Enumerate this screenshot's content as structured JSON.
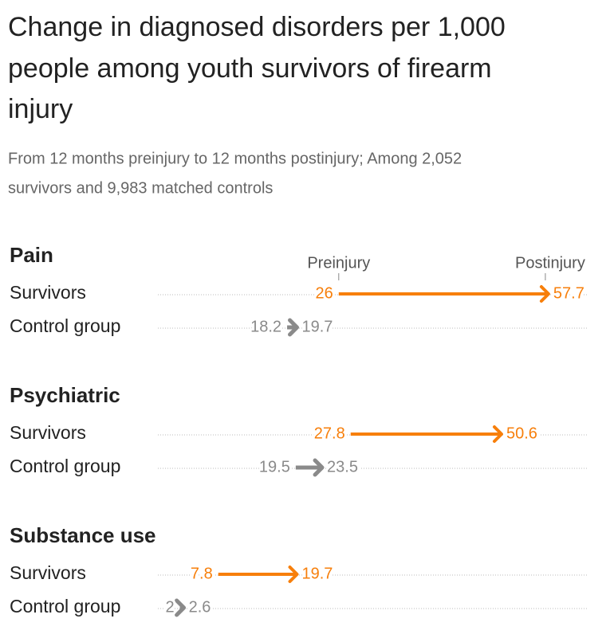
{
  "chart_data": {
    "type": "arrow",
    "title": [
      "Change in diagnosed disorders per 1,000",
      "people among youth survivors of firearm",
      "injury"
    ],
    "subtitle": [
      "From 12 months preinjury to 12 months postinjury; Among 2,052",
      "survivors and 9,983 matched controls"
    ],
    "start_label": "Preinjury",
    "end_label": "Postinjury",
    "xlim": [
      0,
      60
    ],
    "series": [
      {
        "name": "Survivors",
        "color": "#f77f0b"
      },
      {
        "name": "Control group",
        "color": "#8a8a8a"
      }
    ],
    "groups": [
      {
        "name": "Pain",
        "start": [
          26,
          18.2
        ],
        "end": [
          57.7,
          19.7
        ]
      },
      {
        "name": "Psychiatric",
        "start": [
          27.8,
          19.5
        ],
        "end": [
          50.6,
          23.5
        ]
      },
      {
        "name": "Substance use",
        "start": [
          7.8,
          2
        ],
        "end": [
          19.7,
          2.6
        ]
      }
    ]
  }
}
